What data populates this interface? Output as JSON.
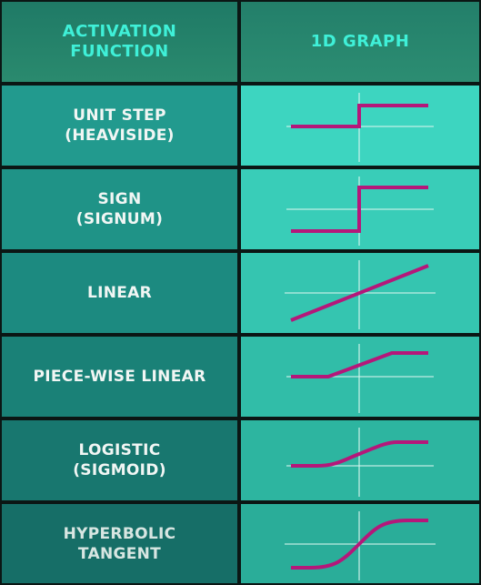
{
  "header": {
    "col1": "ACTIVATION\nFUNCTION",
    "col2": "1D GRAPH"
  },
  "rows": [
    {
      "name": "UNIT STEP\n(HEAVISIDE)",
      "graph": "unit-step"
    },
    {
      "name": "SIGN\n(SIGNUM)",
      "graph": "sign"
    },
    {
      "name": "LINEAR",
      "graph": "linear"
    },
    {
      "name": "PIECE-WISE LINEAR",
      "graph": "piecewise-linear"
    },
    {
      "name": "LOGISTIC\n(SIGMOID)",
      "graph": "logistic"
    },
    {
      "name": "HYPERBOLIC\nTANGENT",
      "graph": "tanh"
    }
  ],
  "colors": {
    "curve": "#b5177a",
    "axis": "#d8f5ee",
    "header_text": "#3ff0d8"
  }
}
